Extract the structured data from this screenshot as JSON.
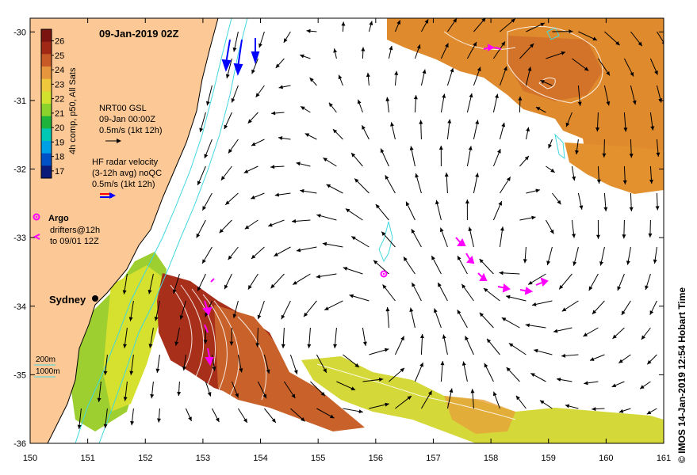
{
  "title": "09-Jan-2019 02Z",
  "axes": {
    "x_ticks": [
      "150",
      "151",
      "152",
      "153",
      "154",
      "155",
      "156",
      "157",
      "158",
      "159",
      "160",
      "161"
    ],
    "y_ticks": [
      "-30",
      "-31",
      "-32",
      "-33",
      "-34",
      "-35",
      "-36"
    ],
    "lon_range": [
      150,
      161
    ],
    "lat_range": [
      -36,
      -29.8
    ]
  },
  "colorbar": {
    "label": "4h comp, p50, All Sats",
    "ticks": [
      "26",
      "25",
      "24",
      "23",
      "22",
      "21",
      "20",
      "19",
      "18",
      "17"
    ],
    "range_c": [
      16.5,
      26.8
    ],
    "colors": [
      "#0a1a7a",
      "#0050c8",
      "#00a0e6",
      "#00c8b4",
      "#1eb43c",
      "#8cd22d",
      "#d2e12d",
      "#f0c83c",
      "#e6963c",
      "#c85a28",
      "#a02814",
      "#7a1410"
    ]
  },
  "legend": {
    "gsl": {
      "line1": "NRT00 GSL",
      "line2": "09-Jan 00:00Z",
      "line3": "0.5m/s (1kt 12h)"
    },
    "radar": {
      "line1": "HF radar velocity",
      "line2": "(3-12h avg) noQC",
      "line3": "0.5m/s (1kt 12h)"
    },
    "argo": {
      "label": "Argo"
    },
    "drifters": {
      "line1": "drifters@12h",
      "line2": "to 09/01 12Z"
    },
    "bathy": {
      "line1": "200m",
      "line2": "1000m"
    }
  },
  "places": [
    {
      "name": "Sydney",
      "lon": 151.2,
      "lat": -33.87
    }
  ],
  "credit": "© IMOS 14-Jan-2019 12:54 Hobart Time",
  "colors": {
    "land": "#fcc896",
    "coast": "#000000",
    "isobath": "#40d8e0",
    "argo": "#ff00ff",
    "radar": "#0000ff",
    "contour": "#ffffff"
  }
}
